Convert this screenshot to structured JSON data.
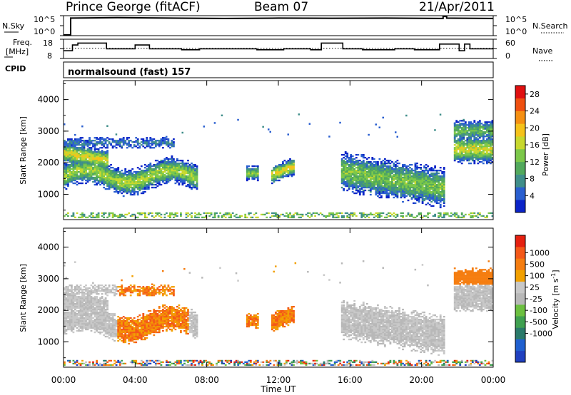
{
  "header": {
    "station": "Prince George (fitACF)",
    "beam": "Beam 07",
    "date": "21/Apr/2011",
    "cpid_label": "CPID",
    "cpid_value": "normalsound (fast) 157"
  },
  "chart_data": [
    {
      "type": "line",
      "name": "noise-panel",
      "ylabel_left": "N.Sky",
      "ylabel_right": "N.Search",
      "yticks_left": [
        "10^5",
        "10^0"
      ],
      "yticks_right": [
        "10^5",
        "10^0"
      ],
      "ylim": [
        0,
        5
      ],
      "x_hours": [
        0,
        0.4,
        0.4,
        3,
        6,
        9,
        12,
        15,
        18,
        21.2,
        21.2,
        21.4,
        21.4,
        24
      ],
      "series": [
        {
          "name": "N.Sky",
          "style": "solid",
          "values": [
            0.2,
            0.2,
            4.4,
            4.5,
            4.4,
            4.3,
            4.4,
            4.35,
            4.4,
            4.3,
            4.8,
            4.8,
            4.4,
            4.3
          ]
        }
      ]
    },
    {
      "type": "line",
      "name": "frequency-panel",
      "ylabel_left": "Freq. [MHz]",
      "ylabel_right": "Nave",
      "yticks_left": [
        "18",
        "8"
      ],
      "yticks_right": [
        "60",
        "0"
      ],
      "ylim": [
        8,
        18
      ],
      "x_hours": [
        0,
        0.5,
        0.5,
        0.8,
        0.8,
        2.4,
        2.4,
        4,
        4,
        4.8,
        4.8,
        6.6,
        6.6,
        7.6,
        7.6,
        10.8,
        10.8,
        12.3,
        12.3,
        13.8,
        13.8,
        14.4,
        14.4,
        15.6,
        15.6,
        16.7,
        16.7,
        18.5,
        18.5,
        19.6,
        19.6,
        21,
        21,
        22.1,
        22.1,
        22.4,
        22.4,
        22.7,
        22.7,
        24
      ],
      "series": [
        {
          "name": "Freq",
          "style": "solid",
          "values": [
            12,
            12,
            15,
            15,
            16,
            16,
            13,
            13,
            15,
            15,
            13,
            13,
            12.5,
            12.5,
            13,
            13,
            12.5,
            12.5,
            13,
            13,
            12.5,
            12.5,
            16,
            16,
            13,
            13,
            12.5,
            12.5,
            13,
            13,
            12.5,
            12.5,
            15.5,
            15.5,
            12,
            12,
            15.5,
            15.5,
            13,
            13
          ]
        },
        {
          "name": "Nave",
          "style": "dotted",
          "constant": 13.3
        }
      ]
    },
    {
      "type": "heatmap",
      "name": "power-panel",
      "ylabel": "Slant Range [km]",
      "yticks": [
        1000,
        2000,
        3000,
        4000
      ],
      "ylim": [
        200,
        4600
      ],
      "xlim_hours": [
        0,
        24
      ],
      "colorbar": {
        "label": "Power [dB]",
        "ticks": [
          "4",
          "8",
          "12",
          "16",
          "20",
          "24",
          "28"
        ],
        "range": [
          0,
          30
        ],
        "colors": [
          "#0b24c8",
          "#2a5fd0",
          "#3f8e8a",
          "#52a95c",
          "#7cc84a",
          "#c8d82e",
          "#f5c21a",
          "#f58f12",
          "#ef5010",
          "#e01010"
        ]
      }
    },
    {
      "type": "heatmap",
      "name": "velocity-panel",
      "ylabel": "Slant Range [km]",
      "yticks": [
        1000,
        2000,
        3000,
        4000
      ],
      "ylim": [
        200,
        4600
      ],
      "xlim_hours": [
        0,
        24
      ],
      "colorbar": {
        "label": "Velocity [m s-1]",
        "ticks": [
          "1000",
          "500",
          "100",
          "25",
          "-25",
          "-100",
          "-500",
          "-1000"
        ],
        "colors": [
          "#2040c0",
          "#2060d0",
          "#2a7a6a",
          "#3fa050",
          "#6cc040",
          "#b8b8b8",
          "#c8c8c8",
          "#f2a000",
          "#f57d10",
          "#f45818",
          "#e52010"
        ]
      }
    }
  ],
  "xaxis": {
    "label": "Time UT",
    "ticks": [
      "00:00",
      "04:00",
      "08:00",
      "12:00",
      "16:00",
      "20:00",
      "00:00"
    ],
    "ticks_hours": [
      0,
      4,
      8,
      12,
      16,
      20,
      24
    ]
  }
}
